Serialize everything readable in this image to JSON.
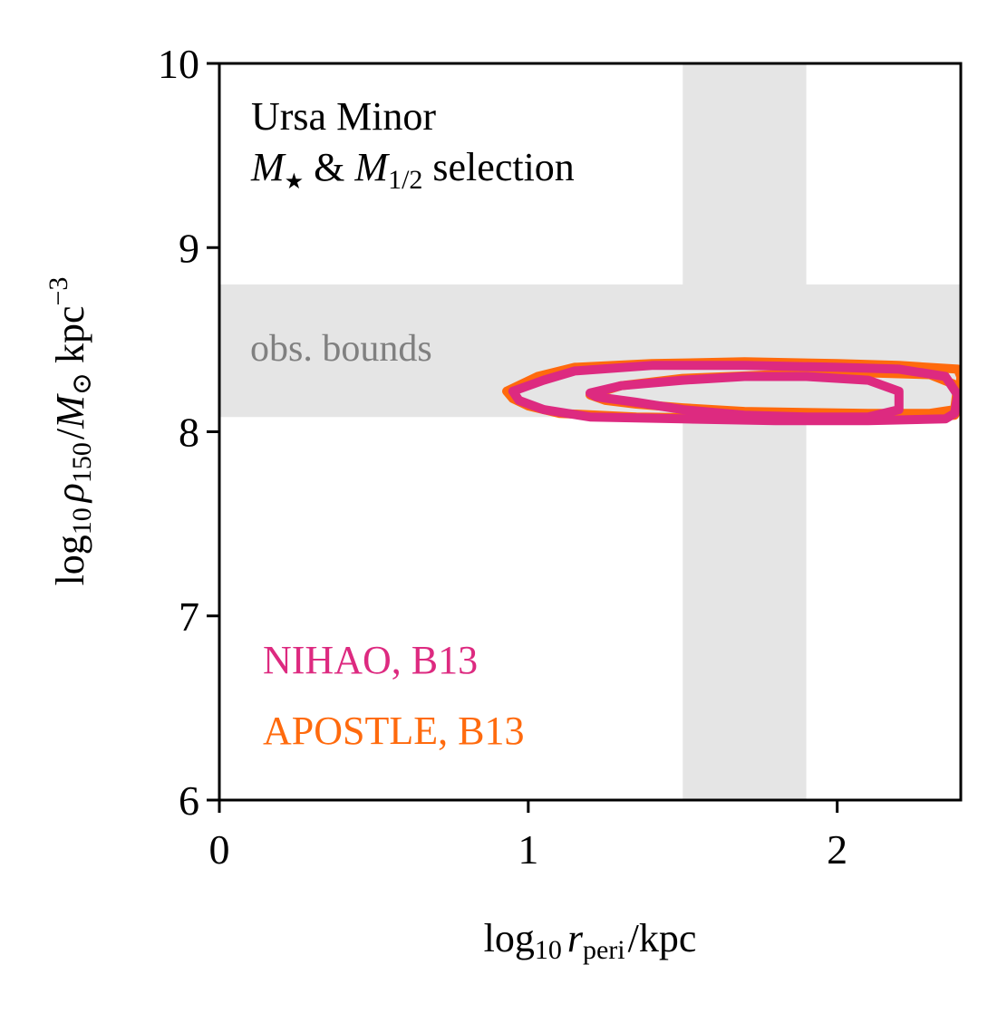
{
  "chart_data": {
    "type": "contour",
    "title": "",
    "annotation": {
      "line1": "Ursa Minor",
      "line2_m_star": "M",
      "line2_star_sub": "★",
      "line2_amp": " & ",
      "line2_m_half": "M",
      "line2_half_sub": "1/2",
      "line2_tail": " selection"
    },
    "xlabel": {
      "prefix": "log",
      "sub10": "10",
      "var": "r",
      "var_sub": "peri",
      "slash": "/",
      "unit": "kpc"
    },
    "ylabel": {
      "prefix": "log",
      "sub10": "10",
      "var": "ρ",
      "var_sub": "150",
      "slash": "/",
      "msun": "M",
      "sun": "⊙",
      "unit": "kpc",
      "exp": "−3"
    },
    "xlim": [
      0,
      2.4
    ],
    "ylim": [
      6,
      10
    ],
    "x_ticks": [
      0,
      1,
      2
    ],
    "x_tick_labels": [
      "0",
      "1",
      "2"
    ],
    "y_ticks": [
      6,
      7,
      8,
      9,
      10
    ],
    "y_tick_labels": [
      "6",
      "7",
      "8",
      "9",
      "10"
    ],
    "bands": [
      {
        "name": "obs-x-band",
        "axis": "x",
        "range": [
          1.5,
          1.9
        ],
        "color": "#e5e5e5"
      },
      {
        "name": "obs-y-band",
        "axis": "y",
        "range": [
          8.08,
          8.8
        ],
        "color": "#e5e5e5"
      }
    ],
    "band_label": "obs. bounds",
    "band_label_color": "#808080",
    "series": [
      {
        "name": "APOSTLE, B13",
        "color": "#ff6a0d",
        "contours": [
          [
            [
              0.93,
              8.22
            ],
            [
              1.03,
              8.3
            ],
            [
              1.15,
              8.35
            ],
            [
              1.4,
              8.37
            ],
            [
              1.7,
              8.38
            ],
            [
              2.0,
              8.37
            ],
            [
              2.2,
              8.36
            ],
            [
              2.39,
              8.34
            ],
            [
              2.4,
              8.3
            ],
            [
              2.4,
              8.16
            ],
            [
              2.38,
              8.09
            ],
            [
              2.2,
              8.07
            ],
            [
              1.9,
              8.07
            ],
            [
              1.6,
              8.075
            ],
            [
              1.35,
              8.08
            ],
            [
              1.1,
              8.1
            ],
            [
              1.0,
              8.14
            ],
            [
              0.95,
              8.18
            ]
          ],
          [
            [
              1.2,
              8.2
            ],
            [
              1.3,
              8.25
            ],
            [
              1.5,
              8.29
            ],
            [
              1.8,
              8.31
            ],
            [
              2.1,
              8.32
            ],
            [
              2.3,
              8.31
            ],
            [
              2.39,
              8.25
            ],
            [
              2.38,
              8.12
            ],
            [
              2.3,
              8.1
            ],
            [
              2.1,
              8.1
            ],
            [
              1.9,
              8.105
            ],
            [
              1.7,
              8.11
            ],
            [
              1.5,
              8.13
            ],
            [
              1.35,
              8.15
            ],
            [
              1.25,
              8.17
            ]
          ]
        ]
      },
      {
        "name": "NIHAO, B13",
        "color": "#dd2a80",
        "contours": [
          [
            [
              0.95,
              8.22
            ],
            [
              1.05,
              8.28
            ],
            [
              1.15,
              8.33
            ],
            [
              1.4,
              8.36
            ],
            [
              1.7,
              8.36
            ],
            [
              2.0,
              8.35
            ],
            [
              2.2,
              8.34
            ],
            [
              2.35,
              8.3
            ],
            [
              2.39,
              8.2
            ],
            [
              2.38,
              8.1
            ],
            [
              2.35,
              8.07
            ],
            [
              2.1,
              8.06
            ],
            [
              1.8,
              8.06
            ],
            [
              1.5,
              8.07
            ],
            [
              1.2,
              8.08
            ],
            [
              1.05,
              8.12
            ],
            [
              0.97,
              8.17
            ]
          ],
          [
            [
              1.2,
              8.21
            ],
            [
              1.3,
              8.25
            ],
            [
              1.5,
              8.28
            ],
            [
              1.7,
              8.3
            ],
            [
              1.9,
              8.3
            ],
            [
              2.1,
              8.28
            ],
            [
              2.2,
              8.22
            ],
            [
              2.2,
              8.12
            ],
            [
              2.1,
              8.08
            ],
            [
              1.9,
              8.08
            ],
            [
              1.7,
              8.09
            ],
            [
              1.5,
              8.12
            ],
            [
              1.35,
              8.16
            ],
            [
              1.22,
              8.19
            ]
          ]
        ]
      }
    ],
    "legend": [
      {
        "label": "NIHAO, B13",
        "color": "#dd2a80"
      },
      {
        "label": "APOSTLE, B13",
        "color": "#ff6a0d"
      }
    ],
    "legend_placement": "bottom-left",
    "grid": false
  }
}
